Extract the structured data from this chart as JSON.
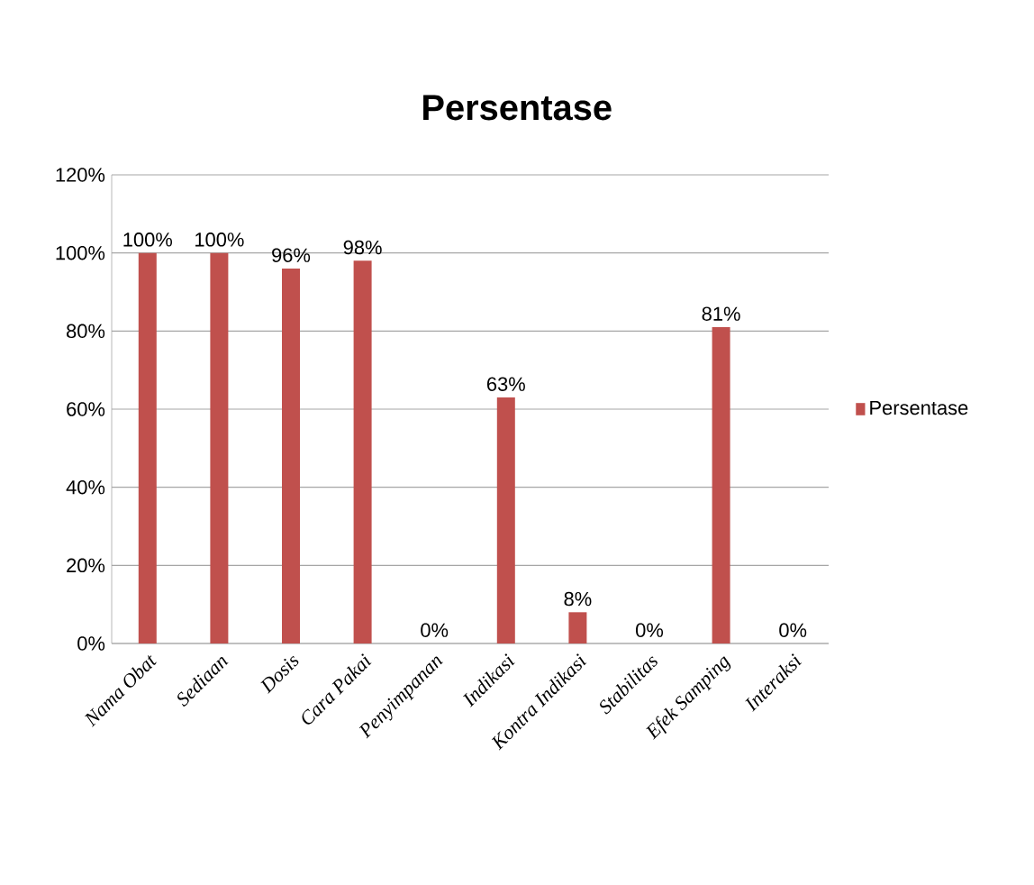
{
  "chart_data": {
    "type": "bar",
    "title": "Persentase",
    "categories": [
      "Nama Obat",
      "Sediaan",
      "Dosis",
      "Cara Pakai",
      "Penyimpanan",
      "Indikasi",
      "Kontra Indikasi",
      "Stabilitas",
      "Efek Samping",
      "Interaksi"
    ],
    "series": [
      {
        "name": "Persentase",
        "color": "#c0504d",
        "values": [
          100,
          100,
          96,
          98,
          0,
          63,
          8,
          0,
          81,
          0
        ],
        "value_labels": [
          "100%",
          "100%",
          "96%",
          "98%",
          "0%",
          "63%",
          "8%",
          "0%",
          "81%",
          "0%"
        ]
      }
    ],
    "ylim": [
      0,
      120
    ],
    "yticks": [
      {
        "value": 0,
        "label": "0%"
      },
      {
        "value": 20,
        "label": "20%"
      },
      {
        "value": 40,
        "label": "40%"
      },
      {
        "value": 60,
        "label": "60%"
      },
      {
        "value": 80,
        "label": "80%"
      },
      {
        "value": 100,
        "label": "100%"
      },
      {
        "value": 120,
        "label": "120%"
      }
    ],
    "grid": "y",
    "legend": "right"
  }
}
